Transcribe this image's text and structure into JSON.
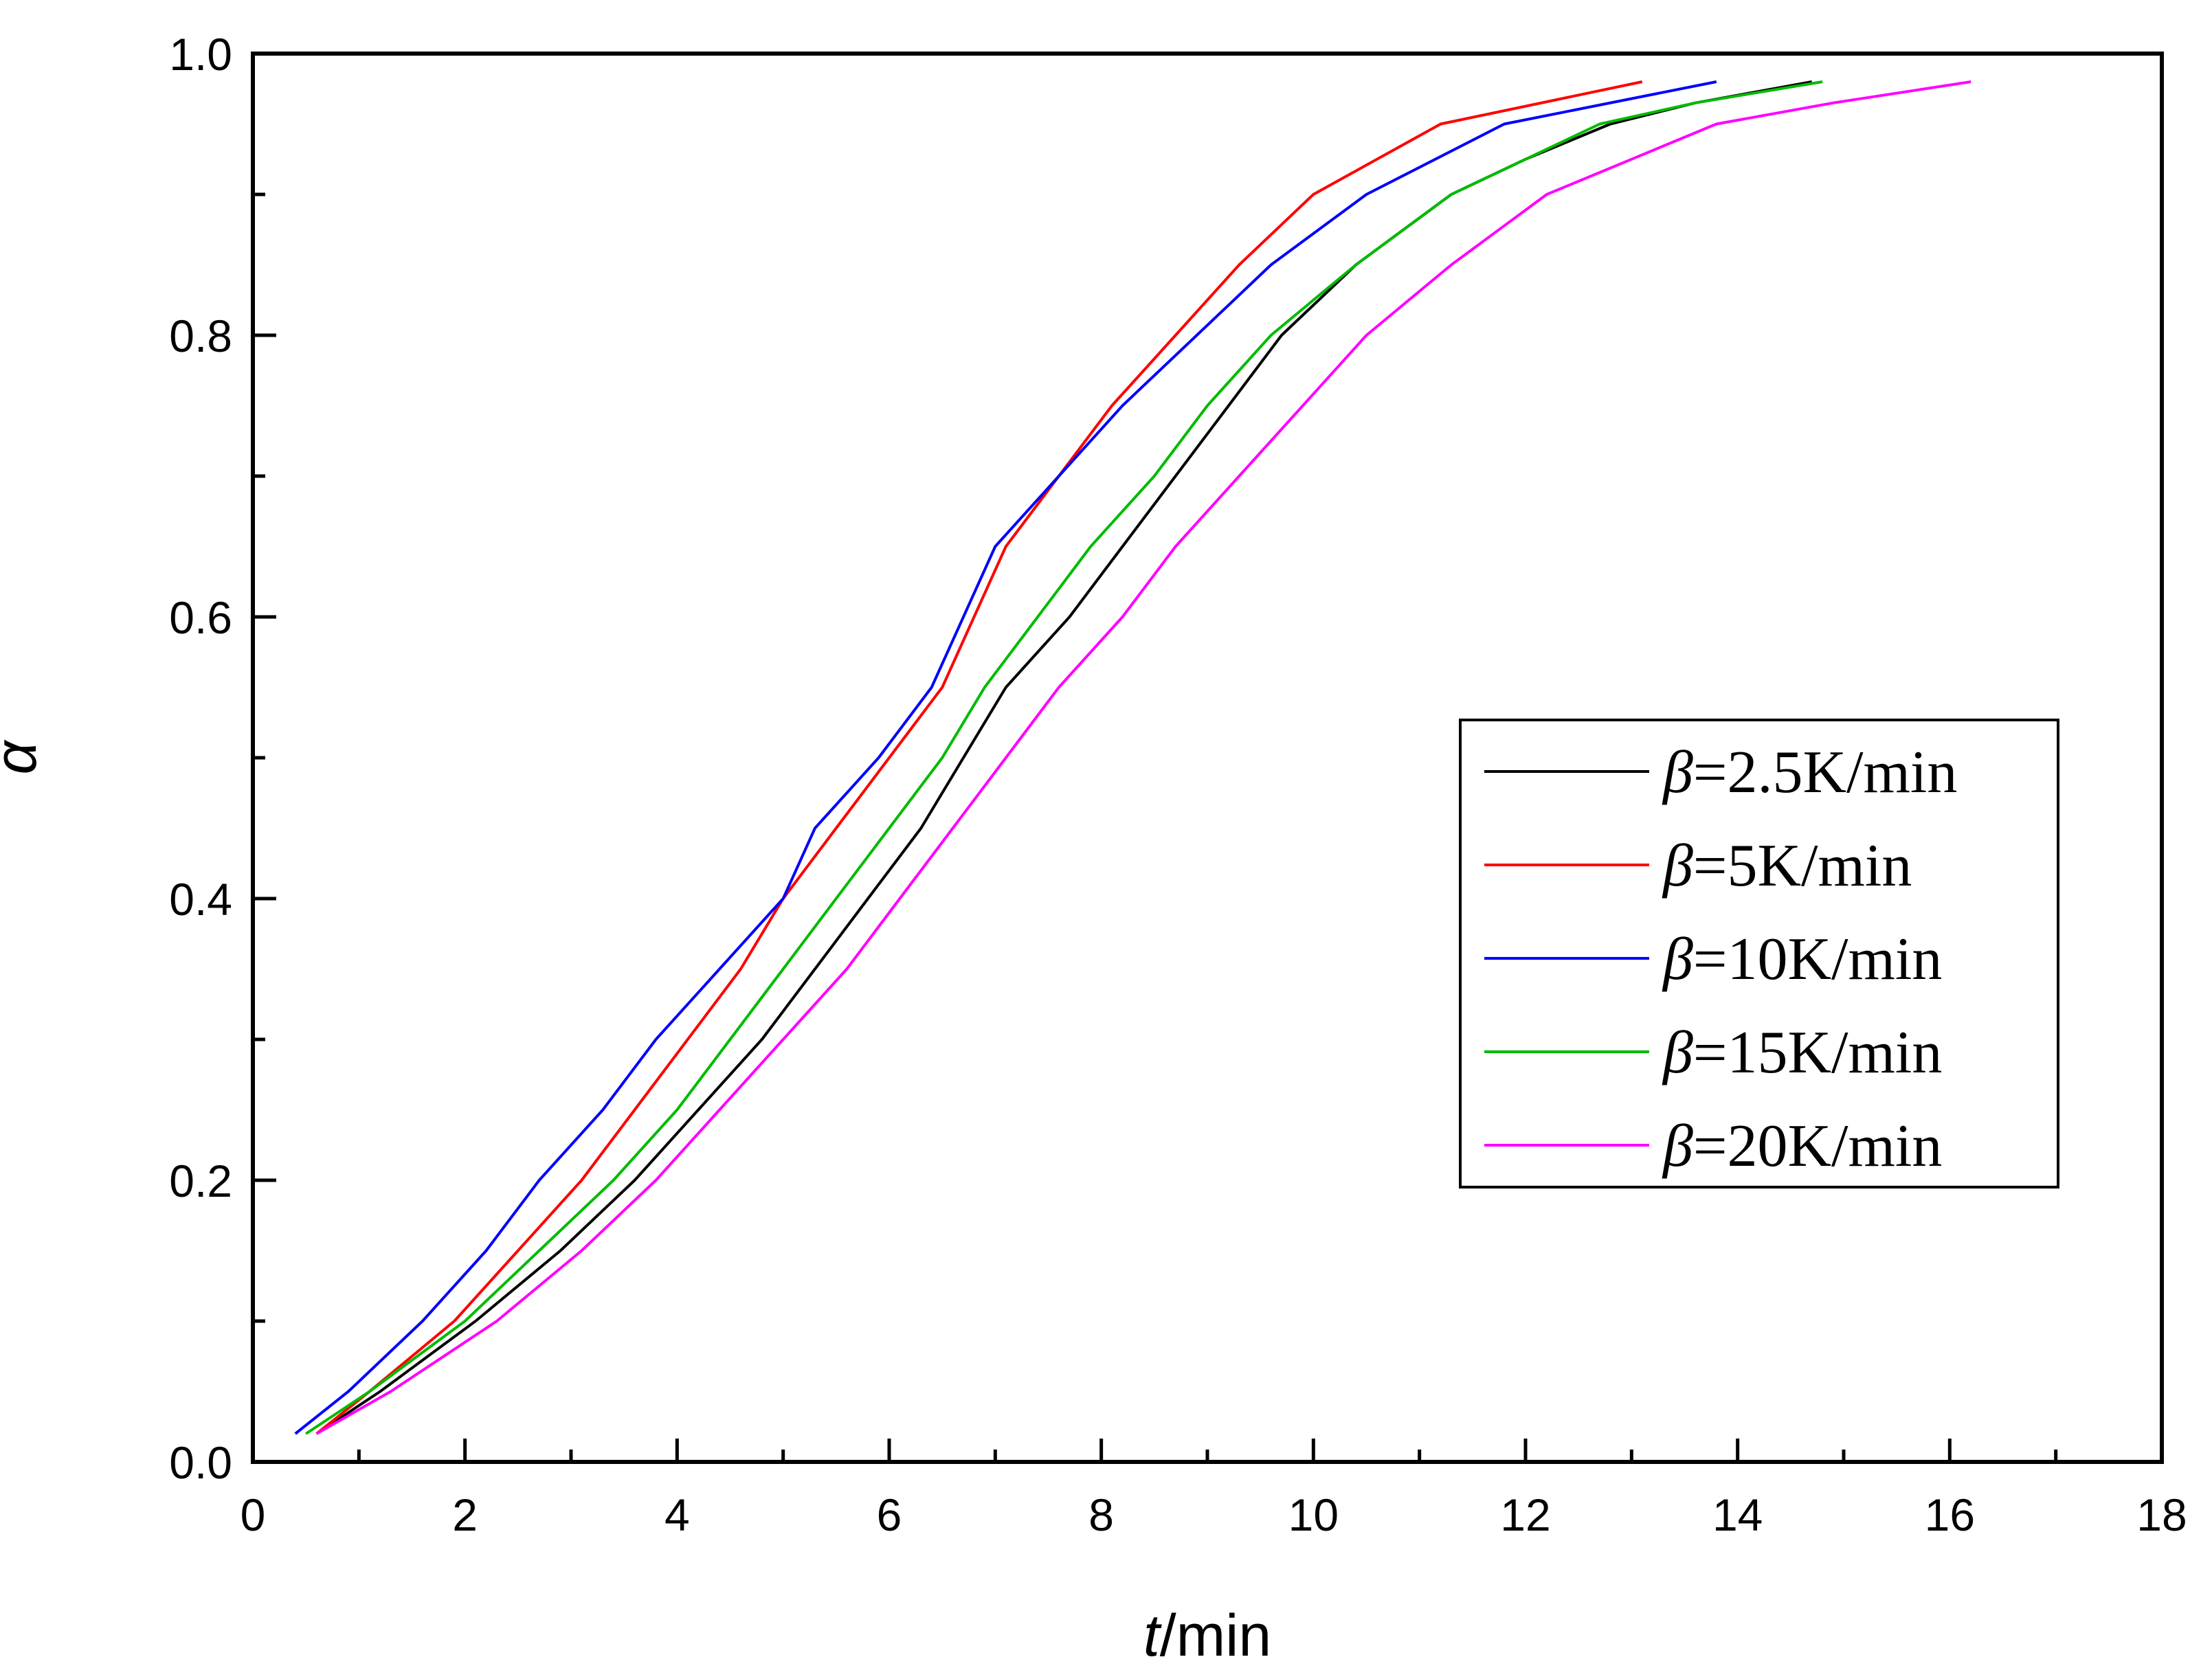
{
  "chart_data": {
    "type": "line",
    "title": "",
    "xlabel": {
      "italic": "t",
      "rest": "/min"
    },
    "ylabel": "α",
    "xlim": [
      0,
      18
    ],
    "ylim": [
      0,
      1.0
    ],
    "x_ticks": [
      0,
      2,
      4,
      6,
      8,
      10,
      12,
      14,
      16,
      18
    ],
    "y_ticks": [
      0.0,
      0.2,
      0.4,
      0.6,
      0.8,
      1.0
    ],
    "x_tick_labels": [
      "0",
      "2",
      "4",
      "6",
      "8",
      "10",
      "12",
      "14",
      "16",
      "18"
    ],
    "y_tick_labels": [
      "0.0",
      "0.2",
      "0.4",
      "0.6",
      "0.8",
      "1.0"
    ],
    "grid": false,
    "legend_position": "center-right",
    "series": [
      {
        "name": "β=2.5K/min",
        "legend_symbol": "β",
        "legend_rest": "=2.5K/min",
        "color": "#000000",
        "x": [
          0.6,
          1.2,
          2.1,
          2.9,
          3.6,
          4.2,
          4.8,
          5.3,
          5.8,
          6.3,
          6.7,
          7.1,
          7.7,
          8.2,
          8.7,
          9.2,
          9.7,
          10.4,
          11.3,
          12.0,
          12.8,
          13.6,
          14.7
        ],
        "y": [
          0.02,
          0.05,
          0.1,
          0.15,
          0.2,
          0.25,
          0.3,
          0.35,
          0.4,
          0.45,
          0.5,
          0.55,
          0.6,
          0.65,
          0.7,
          0.75,
          0.8,
          0.85,
          0.9,
          0.925,
          0.95,
          0.965,
          0.98
        ]
      },
      {
        "name": "β=5K/min",
        "legend_symbol": "β",
        "legend_rest": "=5K/min",
        "color": "#ff0000",
        "x": [
          0.6,
          1.1,
          1.9,
          2.5,
          3.1,
          3.6,
          4.1,
          4.6,
          5.0,
          5.5,
          6.0,
          6.5,
          7.1,
          7.6,
          8.1,
          8.7,
          9.3,
          10.0,
          11.2,
          13.1
        ],
        "y": [
          0.02,
          0.05,
          0.1,
          0.15,
          0.2,
          0.25,
          0.3,
          0.35,
          0.4,
          0.45,
          0.5,
          0.55,
          0.65,
          0.7,
          0.75,
          0.8,
          0.85,
          0.9,
          0.95,
          0.98
        ]
      },
      {
        "name": "β=10K/min",
        "legend_symbol": "β",
        "legend_rest": "=10K/min",
        "color": "#0000ff",
        "x": [
          0.4,
          0.9,
          1.6,
          2.2,
          2.7,
          3.3,
          3.8,
          4.4,
          5.0,
          5.3,
          5.9,
          6.4,
          7.0,
          7.6,
          8.2,
          8.9,
          9.6,
          10.5,
          11.8,
          13.8
        ],
        "y": [
          0.02,
          0.05,
          0.1,
          0.15,
          0.2,
          0.25,
          0.3,
          0.35,
          0.4,
          0.45,
          0.5,
          0.55,
          0.65,
          0.7,
          0.75,
          0.8,
          0.85,
          0.9,
          0.95,
          0.98
        ]
      },
      {
        "name": "β=15K/min",
        "legend_symbol": "β",
        "legend_rest": "=15K/min",
        "color": "#00bb00",
        "x": [
          0.5,
          1.1,
          2.0,
          2.7,
          3.4,
          4.0,
          4.5,
          5.0,
          5.5,
          6.0,
          6.5,
          6.9,
          7.4,
          7.9,
          8.5,
          9.0,
          9.6,
          10.4,
          11.3,
          12.0,
          12.7,
          13.6,
          14.8
        ],
        "y": [
          0.02,
          0.05,
          0.1,
          0.15,
          0.2,
          0.25,
          0.3,
          0.35,
          0.4,
          0.45,
          0.5,
          0.55,
          0.6,
          0.65,
          0.7,
          0.75,
          0.8,
          0.85,
          0.9,
          0.925,
          0.95,
          0.965,
          0.98
        ]
      },
      {
        "name": "β=20K/min",
        "legend_symbol": "β",
        "legend_rest": "=20K/min",
        "color": "#ff00ff",
        "x": [
          0.6,
          1.3,
          2.3,
          3.1,
          3.8,
          4.4,
          5.0,
          5.6,
          6.1,
          6.6,
          7.1,
          7.6,
          8.2,
          8.7,
          9.3,
          9.9,
          10.5,
          11.3,
          12.2,
          13.0,
          13.8,
          14.9,
          16.2
        ],
        "y": [
          0.02,
          0.05,
          0.1,
          0.15,
          0.2,
          0.25,
          0.3,
          0.35,
          0.4,
          0.45,
          0.5,
          0.55,
          0.6,
          0.65,
          0.7,
          0.75,
          0.8,
          0.85,
          0.9,
          0.925,
          0.95,
          0.965,
          0.98
        ]
      }
    ]
  }
}
